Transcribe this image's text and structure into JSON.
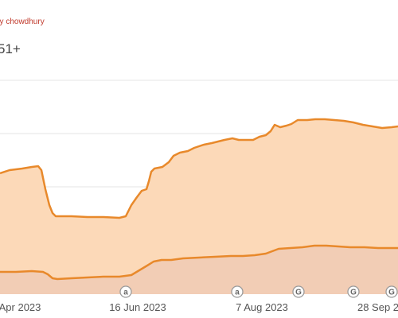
{
  "header": {
    "author": "by chowdhury",
    "count": "51+"
  },
  "colors": {
    "line": "#e8892b",
    "area_top": "#fcd9b8",
    "area_bottom": "#f2cdb5",
    "grid": "#e6e6e6",
    "marker_stroke": "#9a9a9a"
  },
  "chart_data": {
    "type": "area",
    "x_tick_labels": [
      "Apr 2023",
      "16 Jun 2023",
      "7 Aug 2023",
      "28 Sep 2"
    ],
    "annotation_markers": [
      "a",
      "a",
      "G",
      "G",
      "G"
    ],
    "grid": true,
    "series": [
      {
        "values": [
          210,
          212,
          214,
          214,
          212,
          218,
          222,
          228,
          225,
          234,
          236,
          238,
          232,
          235,
          232,
          238,
          241,
          245,
          242,
          248,
          250,
          252,
          250,
          256,
          255
        ]
      },
      {
        "values": [
          240,
          240,
          240,
          240,
          240,
          242,
          246,
          246,
          246,
          246,
          245,
          244,
          244,
          244,
          244,
          244,
          244,
          243,
          244,
          245,
          245,
          245,
          245,
          245,
          245
        ]
      }
    ]
  }
}
